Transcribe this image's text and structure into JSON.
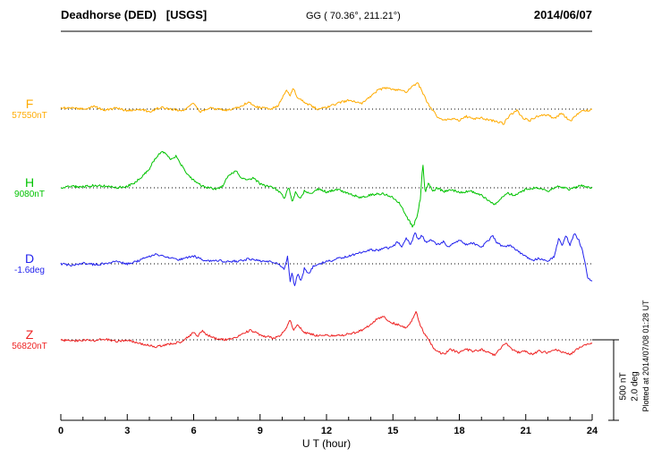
{
  "header": {
    "station": "Deadhorse (DED)   [USGS]",
    "coords": "GG ( 70.36°, 211.21°)",
    "date": "2014/06/07"
  },
  "footer_note": "Plotted at 2014/07/08 01:28 UT",
  "chart_data": {
    "type": "line",
    "title": "Deadhorse (DED)   [USGS]",
    "subtitle": "GG ( 70.36°, 211.21°)",
    "date": "2014/06/07",
    "xlabel": "U T (hour)",
    "x_unit": "hour",
    "x_range": [
      0,
      24
    ],
    "x_ticks": [
      0,
      3,
      6,
      9,
      12,
      15,
      18,
      21,
      24
    ],
    "x_minor_tick_step": 1,
    "grid": "dotted-baselines",
    "scale_bar": {
      "nt_label": "500 nT",
      "deg_label": "2.0 deg",
      "nt_value": 500,
      "deg_value": 2.0
    },
    "plotted_note": "Plotted at 2014/07/08 01:28 UT",
    "series": [
      {
        "id": "F",
        "label": "F",
        "baseline_label": "57550nT",
        "baseline": 57550,
        "unit": "nT",
        "color": "#ffab00",
        "offsets_keypoints": [
          [
            0,
            5
          ],
          [
            0.5,
            10
          ],
          [
            1,
            0
          ],
          [
            1.5,
            15
          ],
          [
            2,
            -5
          ],
          [
            2.5,
            5
          ],
          [
            3,
            -10
          ],
          [
            3.5,
            0
          ],
          [
            4,
            -15
          ],
          [
            4.5,
            10
          ],
          [
            5,
            0
          ],
          [
            5.5,
            -10
          ],
          [
            6,
            35
          ],
          [
            6.3,
            -20
          ],
          [
            6.7,
            10
          ],
          [
            7,
            0
          ],
          [
            7.5,
            -5
          ],
          [
            8,
            10
          ],
          [
            8.5,
            45
          ],
          [
            8.8,
            15
          ],
          [
            9,
            10
          ],
          [
            9.5,
            0
          ],
          [
            9.8,
            20
          ],
          [
            10.2,
            115
          ],
          [
            10.35,
            80
          ],
          [
            10.5,
            130
          ],
          [
            10.7,
            70
          ],
          [
            11,
            45
          ],
          [
            11.3,
            20
          ],
          [
            11.6,
            0
          ],
          [
            12,
            10
          ],
          [
            12.5,
            35
          ],
          [
            13,
            55
          ],
          [
            13.3,
            45
          ],
          [
            13.6,
            35
          ],
          [
            14,
            80
          ],
          [
            14.3,
            115
          ],
          [
            14.6,
            130
          ],
          [
            15,
            125
          ],
          [
            15.3,
            115
          ],
          [
            15.6,
            105
          ],
          [
            15.8,
            130
          ],
          [
            16.1,
            165
          ],
          [
            16.3,
            115
          ],
          [
            16.5,
            55
          ],
          [
            16.8,
            -10
          ],
          [
            17,
            -45
          ],
          [
            17.3,
            -70
          ],
          [
            17.6,
            -60
          ],
          [
            18,
            -70
          ],
          [
            18.3,
            -45
          ],
          [
            18.6,
            -60
          ],
          [
            19,
            -55
          ],
          [
            19.3,
            -65
          ],
          [
            19.6,
            -75
          ],
          [
            20,
            -90
          ],
          [
            20.3,
            -35
          ],
          [
            20.6,
            -10
          ],
          [
            20.9,
            -60
          ],
          [
            21.2,
            -70
          ],
          [
            21.5,
            -45
          ],
          [
            22,
            -35
          ],
          [
            22.3,
            -60
          ],
          [
            22.6,
            -25
          ],
          [
            23,
            -75
          ],
          [
            23.3,
            -35
          ],
          [
            23.6,
            -10
          ],
          [
            24,
            -5
          ]
        ]
      },
      {
        "id": "H",
        "label": "H",
        "baseline_label": "9080nT",
        "baseline": 9080,
        "unit": "nT",
        "color": "#00c300",
        "offsets_keypoints": [
          [
            0,
            0
          ],
          [
            0.5,
            10
          ],
          [
            1,
            5
          ],
          [
            1.5,
            15
          ],
          [
            2,
            10
          ],
          [
            2.5,
            0
          ],
          [
            3,
            10
          ],
          [
            3.3,
            30
          ],
          [
            3.6,
            60
          ],
          [
            4,
            120
          ],
          [
            4.3,
            190
          ],
          [
            4.6,
            225
          ],
          [
            4.8,
            205
          ],
          [
            5,
            175
          ],
          [
            5.2,
            195
          ],
          [
            5.5,
            130
          ],
          [
            5.8,
            70
          ],
          [
            6.1,
            35
          ],
          [
            6.4,
            10
          ],
          [
            6.7,
            0
          ],
          [
            7,
            -10
          ],
          [
            7.3,
            10
          ],
          [
            7.6,
            80
          ],
          [
            7.9,
            105
          ],
          [
            8.1,
            70
          ],
          [
            8.4,
            45
          ],
          [
            8.7,
            60
          ],
          [
            9,
            25
          ],
          [
            9.3,
            10
          ],
          [
            9.6,
            0
          ],
          [
            9.9,
            -25
          ],
          [
            10.1,
            -70
          ],
          [
            10.3,
            10
          ],
          [
            10.45,
            -90
          ],
          [
            10.6,
            -30
          ],
          [
            10.8,
            -70
          ],
          [
            11,
            -20
          ],
          [
            11.3,
            -35
          ],
          [
            11.6,
            -10
          ],
          [
            12,
            -25
          ],
          [
            12.5,
            -10
          ],
          [
            13,
            -35
          ],
          [
            13.5,
            -60
          ],
          [
            14,
            -45
          ],
          [
            14.5,
            -35
          ],
          [
            15,
            -60
          ],
          [
            15.3,
            -95
          ],
          [
            15.6,
            -175
          ],
          [
            15.9,
            -245
          ],
          [
            16.1,
            -175
          ],
          [
            16.25,
            -60
          ],
          [
            16.35,
            165
          ],
          [
            16.45,
            -30
          ],
          [
            16.6,
            30
          ],
          [
            16.8,
            -20
          ],
          [
            17,
            0
          ],
          [
            17.3,
            -25
          ],
          [
            17.6,
            -10
          ],
          [
            18,
            -30
          ],
          [
            18.5,
            -20
          ],
          [
            19,
            -45
          ],
          [
            19.3,
            -80
          ],
          [
            19.6,
            -105
          ],
          [
            19.9,
            -60
          ],
          [
            20.2,
            -35
          ],
          [
            20.5,
            -45
          ],
          [
            21,
            -10
          ],
          [
            21.5,
            0
          ],
          [
            22,
            -20
          ],
          [
            22.5,
            10
          ],
          [
            23,
            -10
          ],
          [
            23.5,
            15
          ],
          [
            24,
            0
          ]
        ]
      },
      {
        "id": "D",
        "label": "D",
        "baseline_label": "-1.6deg",
        "baseline": -1.6,
        "unit": "deg",
        "color": "#2222ee",
        "offsets_keypoints": [
          [
            0,
            0
          ],
          [
            0.5,
            -0.05
          ],
          [
            1,
            0.02
          ],
          [
            1.5,
            -0.02
          ],
          [
            2,
            0
          ],
          [
            2.5,
            0.05
          ],
          [
            3,
            0
          ],
          [
            3.5,
            0.07
          ],
          [
            4,
            0.19
          ],
          [
            4.3,
            0.24
          ],
          [
            4.6,
            0.19
          ],
          [
            5,
            0.14
          ],
          [
            5.3,
            0.09
          ],
          [
            5.6,
            0.14
          ],
          [
            6,
            0.19
          ],
          [
            6.3,
            0.12
          ],
          [
            6.6,
            0.07
          ],
          [
            7,
            0.09
          ],
          [
            7.5,
            0.05
          ],
          [
            8,
            0.07
          ],
          [
            8.5,
            0.12
          ],
          [
            9,
            0.07
          ],
          [
            9.5,
            0.05
          ],
          [
            9.8,
            0
          ],
          [
            10.1,
            -0.12
          ],
          [
            10.25,
            0.19
          ],
          [
            10.35,
            -0.47
          ],
          [
            10.45,
            -0.19
          ],
          [
            10.55,
            -0.59
          ],
          [
            10.7,
            -0.24
          ],
          [
            10.85,
            -0.42
          ],
          [
            11,
            -0.12
          ],
          [
            11.2,
            -0.24
          ],
          [
            11.4,
            -0.07
          ],
          [
            11.7,
            0
          ],
          [
            12,
            0.05
          ],
          [
            12.3,
            0.09
          ],
          [
            12.6,
            0.14
          ],
          [
            13,
            0.19
          ],
          [
            13.3,
            0.24
          ],
          [
            13.6,
            0.28
          ],
          [
            14,
            0.35
          ],
          [
            14.3,
            0.33
          ],
          [
            14.6,
            0.38
          ],
          [
            15,
            0.42
          ],
          [
            15.2,
            0.56
          ],
          [
            15.4,
            0.42
          ],
          [
            15.6,
            0.66
          ],
          [
            15.8,
            0.47
          ],
          [
            16,
            0.78
          ],
          [
            16.15,
            0.59
          ],
          [
            16.3,
            0.71
          ],
          [
            16.5,
            0.52
          ],
          [
            16.7,
            0.59
          ],
          [
            17,
            0.47
          ],
          [
            17.3,
            0.56
          ],
          [
            17.5,
            0.42
          ],
          [
            17.8,
            0.52
          ],
          [
            18,
            0.59
          ],
          [
            18.3,
            0.47
          ],
          [
            18.6,
            0.52
          ],
          [
            19,
            0.42
          ],
          [
            19.3,
            0.56
          ],
          [
            19.5,
            0.71
          ],
          [
            19.7,
            0.52
          ],
          [
            20,
            0.42
          ],
          [
            20.3,
            0.47
          ],
          [
            20.6,
            0.33
          ],
          [
            21,
            0.19
          ],
          [
            21.3,
            0.09
          ],
          [
            21.6,
            0.14
          ],
          [
            22,
            0.05
          ],
          [
            22.3,
            0.19
          ],
          [
            22.5,
            0.66
          ],
          [
            22.65,
            0.42
          ],
          [
            22.8,
            0.71
          ],
          [
            23,
            0.47
          ],
          [
            23.2,
            0.75
          ],
          [
            23.4,
            0.59
          ],
          [
            23.6,
            0.24
          ],
          [
            23.8,
            -0.35
          ],
          [
            24,
            -0.42
          ]
        ]
      },
      {
        "id": "Z",
        "label": "Z",
        "baseline_label": "56820nT",
        "baseline": 56820,
        "unit": "nT",
        "color": "#ee2222",
        "offsets_keypoints": [
          [
            0,
            0
          ],
          [
            0.5,
            -10
          ],
          [
            1,
            0
          ],
          [
            1.5,
            -5
          ],
          [
            2,
            5
          ],
          [
            2.5,
            -10
          ],
          [
            3,
            0
          ],
          [
            3.5,
            -20
          ],
          [
            4,
            -35
          ],
          [
            4.3,
            -45
          ],
          [
            4.6,
            -35
          ],
          [
            5,
            -25
          ],
          [
            5.5,
            -10
          ],
          [
            6,
            45
          ],
          [
            6.2,
            25
          ],
          [
            6.4,
            60
          ],
          [
            6.6,
            30
          ],
          [
            7,
            10
          ],
          [
            7.5,
            0
          ],
          [
            8,
            20
          ],
          [
            8.3,
            45
          ],
          [
            8.6,
            60
          ],
          [
            9,
            30
          ],
          [
            9.3,
            20
          ],
          [
            9.6,
            10
          ],
          [
            9.9,
            25
          ],
          [
            10.2,
            70
          ],
          [
            10.35,
            130
          ],
          [
            10.5,
            60
          ],
          [
            10.7,
            90
          ],
          [
            11,
            45
          ],
          [
            11.3,
            35
          ],
          [
            11.6,
            25
          ],
          [
            12,
            30
          ],
          [
            12.5,
            25
          ],
          [
            13,
            35
          ],
          [
            13.3,
            45
          ],
          [
            13.6,
            60
          ],
          [
            14,
            95
          ],
          [
            14.3,
            130
          ],
          [
            14.6,
            145
          ],
          [
            14.8,
            120
          ],
          [
            15,
            105
          ],
          [
            15.3,
            90
          ],
          [
            15.6,
            70
          ],
          [
            15.8,
            105
          ],
          [
            16.05,
            175
          ],
          [
            16.2,
            105
          ],
          [
            16.4,
            45
          ],
          [
            16.6,
            10
          ],
          [
            16.8,
            -45
          ],
          [
            17,
            -70
          ],
          [
            17.3,
            -90
          ],
          [
            17.6,
            -60
          ],
          [
            18,
            -80
          ],
          [
            18.3,
            -60
          ],
          [
            18.6,
            -70
          ],
          [
            19,
            -60
          ],
          [
            19.3,
            -75
          ],
          [
            19.6,
            -95
          ],
          [
            19.9,
            -45
          ],
          [
            20.1,
            -25
          ],
          [
            20.4,
            -60
          ],
          [
            20.7,
            -80
          ],
          [
            21,
            -70
          ],
          [
            21.3,
            -90
          ],
          [
            21.6,
            -70
          ],
          [
            22,
            -80
          ],
          [
            22.3,
            -60
          ],
          [
            22.6,
            -75
          ],
          [
            23,
            -90
          ],
          [
            23.3,
            -60
          ],
          [
            23.6,
            -35
          ],
          [
            24,
            -20
          ]
        ]
      }
    ]
  }
}
